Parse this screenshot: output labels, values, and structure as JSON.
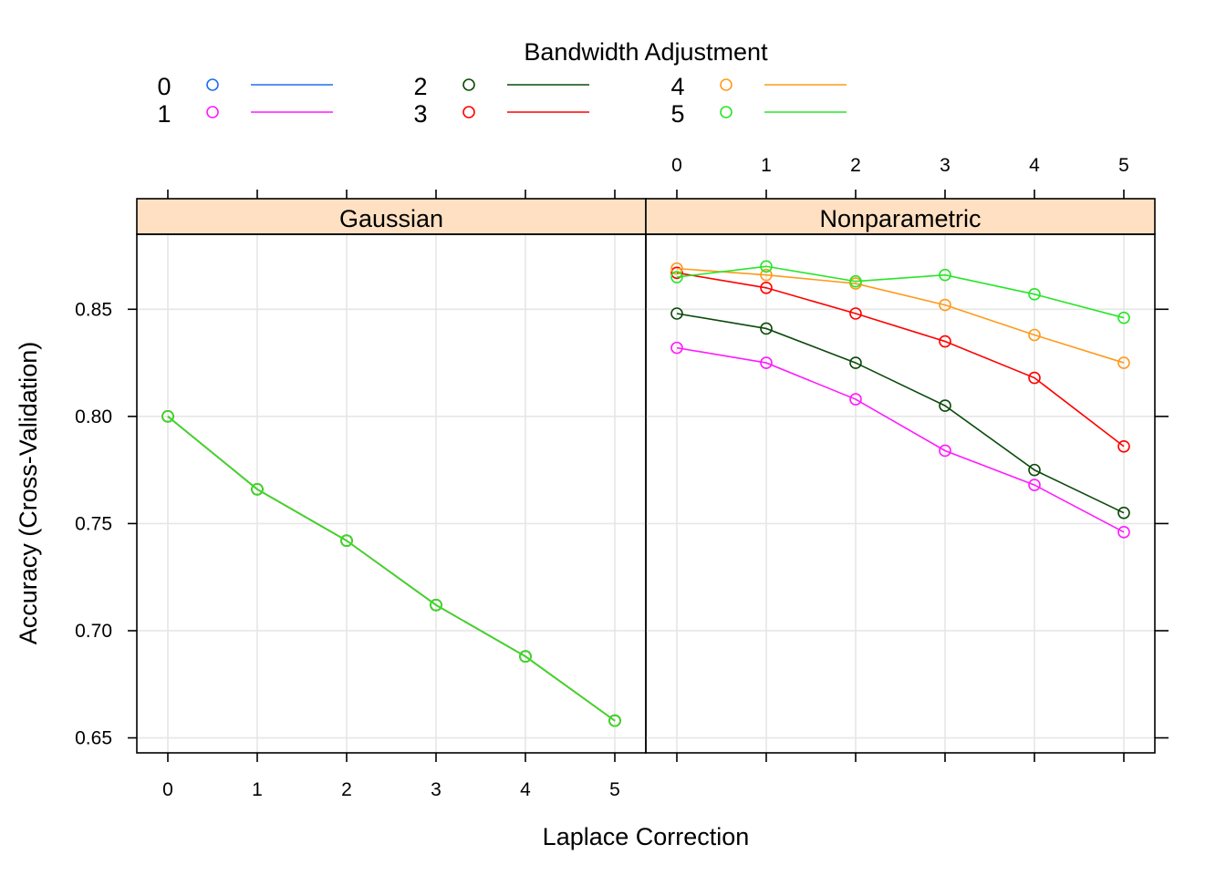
{
  "chart_data": {
    "type": "line",
    "legend_title": "Bandwidth Adjustment",
    "legend_position": "top",
    "xlabel": "Laplace Correction",
    "ylabel": "Accuracy (Cross-Validation)",
    "x": [
      0,
      1,
      2,
      3,
      4,
      5
    ],
    "x_tick_labels": [
      "0",
      "1",
      "2",
      "3",
      "4",
      "5"
    ],
    "y_ticks": [
      0.65,
      0.7,
      0.75,
      0.8,
      0.85
    ],
    "y_tick_labels": [
      "0.65",
      "0.70",
      "0.75",
      "0.80",
      "0.85"
    ],
    "ylim": [
      0.643,
      0.885
    ],
    "grid": true,
    "series_styles": [
      {
        "name": "0",
        "color": "#1f6ef0"
      },
      {
        "name": "1",
        "color": "#ff1aff"
      },
      {
        "name": "2",
        "color": "#0b4a0b"
      },
      {
        "name": "3",
        "color": "#ff0000"
      },
      {
        "name": "4",
        "color": "#ff9a1a"
      },
      {
        "name": "5",
        "color": "#26e626"
      }
    ],
    "panels": [
      {
        "name": "Gaussian",
        "series": [
          {
            "name": "0",
            "values": [
              0.8,
              0.766,
              0.742,
              0.712,
              0.688,
              0.658
            ]
          },
          {
            "name": "1",
            "values": [
              0.8,
              0.766,
              0.742,
              0.712,
              0.688,
              0.658
            ]
          },
          {
            "name": "2",
            "values": [
              0.8,
              0.766,
              0.742,
              0.712,
              0.688,
              0.658
            ]
          },
          {
            "name": "3",
            "values": [
              0.8,
              0.766,
              0.742,
              0.712,
              0.688,
              0.658
            ]
          },
          {
            "name": "4",
            "values": [
              0.8,
              0.766,
              0.742,
              0.712,
              0.688,
              0.658
            ]
          },
          {
            "name": "5",
            "values": [
              0.8,
              0.766,
              0.742,
              0.712,
              0.688,
              0.658
            ]
          }
        ]
      },
      {
        "name": "Nonparametric",
        "series": [
          {
            "name": "1",
            "values": [
              0.832,
              0.825,
              0.808,
              0.784,
              0.768,
              0.746
            ]
          },
          {
            "name": "2",
            "values": [
              0.848,
              0.841,
              0.825,
              0.805,
              0.775,
              0.755
            ]
          },
          {
            "name": "3",
            "values": [
              0.867,
              0.86,
              0.848,
              0.835,
              0.818,
              0.786
            ]
          },
          {
            "name": "4",
            "values": [
              0.869,
              0.866,
              0.862,
              0.852,
              0.838,
              0.825
            ]
          },
          {
            "name": "5",
            "values": [
              0.865,
              0.87,
              0.863,
              0.866,
              0.857,
              0.846
            ]
          }
        ]
      }
    ]
  }
}
